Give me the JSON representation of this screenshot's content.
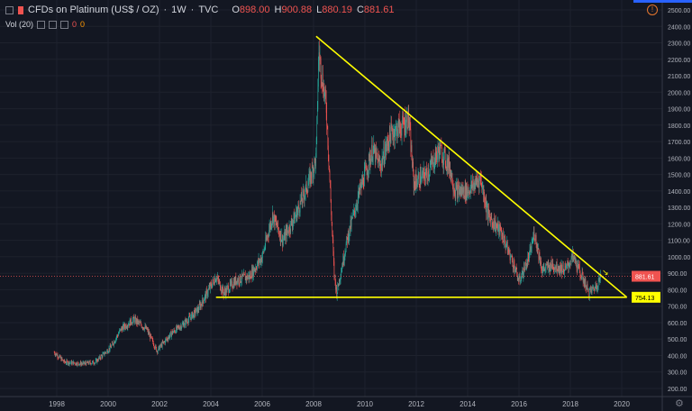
{
  "legend": {
    "symbol": "CFDs on Platinum (US$ / OZ)",
    "interval": "1W",
    "source": "TVC",
    "o_label": "O",
    "open": "898.00",
    "h_label": "H",
    "high": "900.88",
    "l_label": "L",
    "low": "880.19",
    "c_label": "C",
    "close": "881.61"
  },
  "volume": {
    "label": "Vol (20)",
    "v1": "0",
    "v2": "0"
  },
  "price_badges": {
    "last": "881.61",
    "support": "754.13"
  },
  "colors": {
    "bg": "#131722",
    "up": "#26a69a",
    "down": "#ef5350",
    "trend": "#ffff00",
    "grid": "#1e222d"
  },
  "chart_data": {
    "type": "candlestick",
    "title": "CFDs on Platinum (US$ / OZ), 1W",
    "xlabel": "",
    "ylabel": "",
    "x_ticks": [
      "1998",
      "2000",
      "2002",
      "2004",
      "2006",
      "2008",
      "2010",
      "2012",
      "2014",
      "2016",
      "2018",
      "2020"
    ],
    "y_ticks": [
      "200.00",
      "300.00",
      "400.00",
      "500.00",
      "600.00",
      "700.00",
      "800.00",
      "900.00",
      "1000.00",
      "1100.00",
      "1200.00",
      "1300.00",
      "1400.00",
      "1500.00",
      "1600.00",
      "1700.00",
      "1800.00",
      "1900.00",
      "2000.00",
      "2100.00",
      "2200.00",
      "2300.00",
      "2400.00",
      "2500.00"
    ],
    "ylim": [
      150,
      2520
    ],
    "xlim": [
      1995.75,
      2021.55
    ],
    "price_path": [
      [
        1997.9,
        420
      ],
      [
        1998.3,
        360
      ],
      [
        1999,
        350
      ],
      [
        1999.5,
        360
      ],
      [
        2000.1,
        450
      ],
      [
        2000.5,
        560
      ],
      [
        2001.0,
        620
      ],
      [
        2001.5,
        560
      ],
      [
        2001.9,
        430
      ],
      [
        2002.5,
        540
      ],
      [
        2003.0,
        600
      ],
      [
        2003.5,
        680
      ],
      [
        2004.2,
        880
      ],
      [
        2004.5,
        780
      ],
      [
        2005,
        860
      ],
      [
        2005.5,
        880
      ],
      [
        2006.0,
        1000
      ],
      [
        2006.4,
        1250
      ],
      [
        2006.8,
        1100
      ],
      [
        2007.3,
        1250
      ],
      [
        2007.8,
        1450
      ],
      [
        2008.1,
        1600
      ],
      [
        2008.2,
        2250
      ],
      [
        2008.5,
        1900
      ],
      [
        2008.8,
        900
      ],
      [
        2008.9,
        780
      ],
      [
        2009.3,
        1100
      ],
      [
        2009.8,
        1400
      ],
      [
        2010.3,
        1650
      ],
      [
        2010.6,
        1550
      ],
      [
        2011.0,
        1750
      ],
      [
        2011.5,
        1800
      ],
      [
        2011.7,
        1850
      ],
      [
        2011.9,
        1450
      ],
      [
        2012.4,
        1500
      ],
      [
        2012.9,
        1650
      ],
      [
        2013.3,
        1550
      ],
      [
        2013.5,
        1400
      ],
      [
        2014.0,
        1400
      ],
      [
        2014.5,
        1480
      ],
      [
        2014.8,
        1250
      ],
      [
        2015.3,
        1150
      ],
      [
        2015.8,
        950
      ],
      [
        2016.0,
        850
      ],
      [
        2016.4,
        1000
      ],
      [
        2016.6,
        1150
      ],
      [
        2016.9,
        920
      ],
      [
        2017.3,
        950
      ],
      [
        2017.8,
        920
      ],
      [
        2018.1,
        1000
      ],
      [
        2018.6,
        830
      ],
      [
        2018.7,
        780
      ],
      [
        2019.0,
        820
      ],
      [
        2019.2,
        882
      ]
    ],
    "trendlines": [
      {
        "name": "descending-resistance",
        "from": [
          2008.1,
          2340
        ],
        "to": [
          2020.2,
          754.13
        ]
      },
      {
        "name": "horizontal-support",
        "from": [
          2004.2,
          754.13
        ],
        "to": [
          2020.2,
          754.13
        ]
      }
    ],
    "last_price": 881.61
  }
}
